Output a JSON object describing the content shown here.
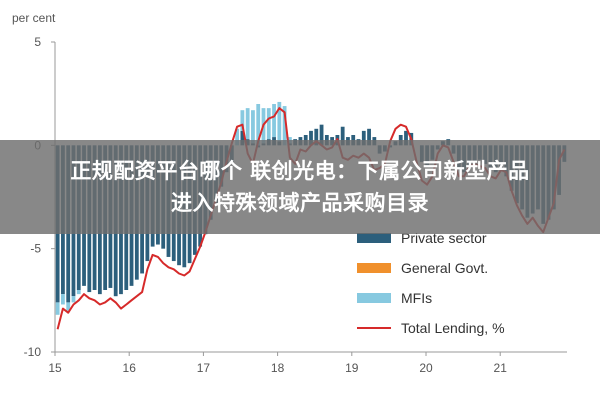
{
  "headline": {
    "line1": "正规配资平台哪个 联创光电：下属公司新型产品",
    "line2": "进入特殊领域产品采购目录"
  },
  "colors": {
    "private_sector": "#2c5f7c",
    "general_govt": "#f0902c",
    "mfis": "#87c9e0",
    "total_lending": "#d62a2a",
    "axis": "#999999",
    "banner": "#6e6e6e"
  },
  "chart_data": {
    "type": "bar",
    "stacked": true,
    "ylabel": "per cent",
    "ylim": [
      -10,
      5
    ],
    "yticks": [
      5,
      0,
      -5,
      -10
    ],
    "x_range": [
      15,
      21.9
    ],
    "xticks": [
      "15",
      "16",
      "17",
      "18",
      "19",
      "20",
      "21"
    ],
    "grid": false,
    "legend_position": "bottom-right",
    "series": [
      {
        "name": "Private sector",
        "type": "bar",
        "values": [
          -7.6,
          -7.2,
          -7.6,
          -7.3,
          -7.0,
          -6.8,
          -7.1,
          -7.0,
          -7.2,
          -7.0,
          -6.9,
          -7.3,
          -7.2,
          -7.0,
          -6.8,
          -6.5,
          -6.2,
          -5.6,
          -4.9,
          -4.8,
          -5.0,
          -5.4,
          -5.6,
          -5.8,
          -5.9,
          -5.7,
          -5.3,
          -4.9,
          -4.3,
          -3.6,
          -2.8,
          -2.0,
          -1.3,
          -0.8,
          0.0,
          0.7,
          0.3,
          0.1,
          -0.1,
          0.1,
          0.3,
          0.4,
          0.2,
          0.0,
          0.1,
          0.3,
          0.4,
          0.5,
          0.7,
          0.8,
          1.0,
          0.5,
          0.4,
          0.5,
          0.9,
          0.4,
          0.5,
          0.3,
          0.7,
          0.8,
          0.4,
          -0.4,
          -0.3,
          -0.1,
          0.2,
          0.5,
          0.7,
          0.6,
          0.0,
          -0.8,
          -1.0,
          -0.7,
          -0.2,
          0.2,
          0.3,
          -0.4,
          -1.1,
          -1.3,
          -1.1,
          -0.9,
          -0.7,
          -0.9,
          -1.2,
          -1.3,
          -1.2,
          -1.5,
          -2.2,
          -2.8,
          -3.1,
          -3.5,
          -3.3,
          -3.1,
          -3.8,
          -3.6,
          -3.1,
          -2.4,
          -0.8
        ]
      },
      {
        "name": "General Govt.",
        "type": "bar",
        "values": [
          0,
          0,
          0,
          0,
          0,
          0,
          0,
          0,
          0,
          0,
          0,
          0,
          0,
          0,
          0,
          0,
          0,
          0,
          0,
          0,
          0,
          0,
          0,
          0,
          0,
          0,
          0,
          0,
          0,
          0,
          0,
          0,
          0,
          0,
          0,
          0,
          0,
          0,
          0,
          0,
          0,
          0,
          0,
          0,
          0,
          0,
          0,
          0,
          0,
          0,
          0,
          0,
          0,
          0,
          0,
          0,
          0,
          0,
          0,
          0,
          0,
          0,
          0,
          0,
          0,
          0,
          0,
          0,
          0,
          0,
          0,
          0,
          0,
          0,
          0,
          0,
          0,
          0,
          0,
          0,
          0,
          0,
          0,
          0,
          0,
          0,
          0,
          0,
          0,
          0,
          0,
          0,
          0,
          0,
          0,
          0,
          0
        ]
      },
      {
        "name": "MFIs",
        "type": "bar",
        "values": [
          -0.6,
          -0.5,
          -0.4,
          -0.3,
          -0.2,
          0.0,
          0.0,
          0.0,
          0.0,
          0.0,
          0.0,
          0.0,
          0.0,
          0.0,
          0.0,
          0.0,
          0.0,
          0.0,
          0.0,
          0.0,
          0.0,
          0.0,
          0.0,
          0.0,
          0.0,
          0.0,
          0.0,
          0.0,
          0.0,
          0.0,
          0.0,
          0.0,
          0.0,
          0.0,
          0.8,
          1.0,
          1.5,
          1.6,
          2.0,
          1.7,
          1.5,
          1.6,
          1.9,
          1.9,
          0.3,
          0.0,
          0.0,
          0.0,
          0.0,
          0.0,
          0.0,
          0.0,
          0.0,
          0.0,
          0.0,
          0.0,
          0.0,
          0.0,
          0.0,
          0.0,
          0.0,
          0.0,
          0.0,
          0.0,
          0.0,
          0.0,
          0.0,
          0.0,
          0.0,
          0.0,
          0.0,
          0.0,
          0.0,
          0.0,
          0.0,
          0.0,
          0.0,
          0.0,
          0.0,
          0.0,
          0.0,
          0.0,
          0.0,
          0.0,
          0.0,
          0.0,
          0.0,
          0.0,
          0.0,
          0.0,
          0.0,
          0.0,
          0.0,
          0.0,
          0.0,
          0.0,
          0.0
        ]
      },
      {
        "name": "Total Lending, %",
        "type": "line",
        "values": [
          -8.9,
          -7.9,
          -8.1,
          -7.7,
          -7.5,
          -7.2,
          -7.4,
          -7.5,
          -7.7,
          -7.6,
          -7.4,
          -7.6,
          -7.9,
          -7.7,
          -7.5,
          -7.3,
          -7.1,
          -6.0,
          -5.3,
          -5.4,
          -5.7,
          -5.9,
          -6.0,
          -6.2,
          -6.3,
          -6.1,
          -5.5,
          -4.9,
          -4.2,
          -3.4,
          -2.6,
          -1.8,
          -0.8,
          0.1,
          0.9,
          1.0,
          -0.4,
          -0.9,
          0.2,
          1.0,
          1.3,
          1.4,
          1.8,
          1.6,
          -0.6,
          -0.9,
          -0.2,
          -0.3,
          0.0,
          0.2,
          0.0,
          -0.2,
          -0.1,
          0.3,
          -0.6,
          -0.7,
          -0.5,
          -0.6,
          -0.4,
          -0.6,
          -1.2,
          -1.1,
          -0.9,
          0.2,
          0.8,
          1.0,
          0.9,
          0.3,
          -0.8,
          -1.7,
          -1.9,
          -1.5,
          -0.4,
          0.0,
          -0.1,
          -0.8,
          -1.5,
          -1.5,
          -1.0,
          -0.9,
          -1.0,
          -1.1,
          -1.5,
          -1.6,
          -1.2,
          -1.3,
          -2.2,
          -2.9,
          -3.4,
          -3.8,
          -3.5,
          -3.9,
          -4.2,
          -3.5,
          -2.8,
          -0.7,
          -0.2
        ]
      }
    ]
  }
}
